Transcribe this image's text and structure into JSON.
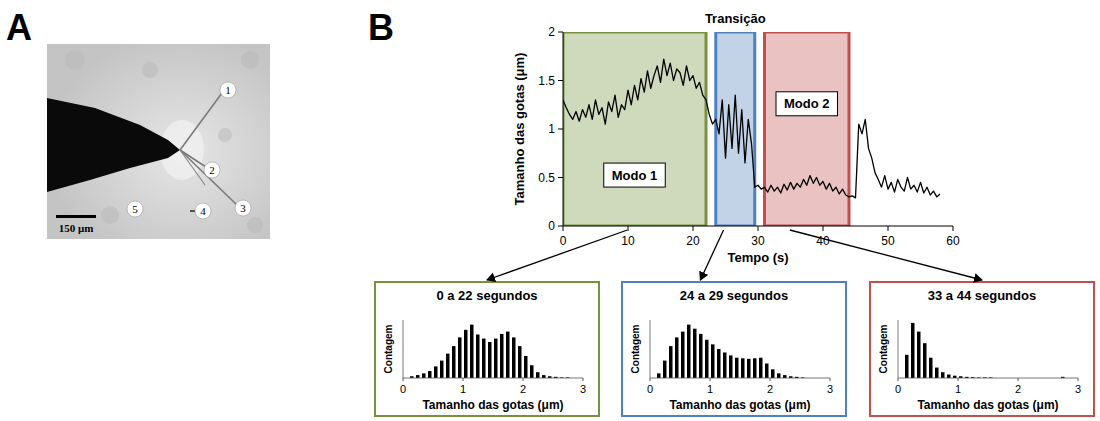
{
  "figure": {
    "panels": [
      "A",
      "B"
    ],
    "micrograph": {
      "markers": [
        "1",
        "2",
        "3",
        "4",
        "5"
      ],
      "scale_bar": "150 μm"
    }
  },
  "chart_data": [
    {
      "type": "line",
      "xlabel": "Tempo (s)",
      "ylabel": "Tamanho das gotas (μm)",
      "xlim": [
        0,
        60
      ],
      "xticks": [
        0,
        10,
        20,
        30,
        40,
        50,
        60
      ],
      "ylim": [
        0,
        2
      ],
      "yticks": [
        0,
        0.5,
        1,
        1.5,
        2
      ],
      "grid": false,
      "color": "#000000",
      "regions": [
        {
          "label": "Modo 1",
          "x": [
            0,
            22
          ],
          "color": "#76923c"
        },
        {
          "label": "Transição",
          "x": [
            23.5,
            29.5
          ],
          "color": "#4f81bd"
        },
        {
          "label": "Modo 2",
          "x": [
            31,
            44
          ],
          "color": "#c0504d"
        }
      ],
      "x": [
        0,
        0.5,
        1,
        1.5,
        2,
        2.5,
        3,
        3.5,
        4,
        4.5,
        5,
        5.5,
        6,
        6.5,
        7,
        7.5,
        8,
        8.5,
        9,
        9.5,
        10,
        10.5,
        11,
        11.5,
        12,
        12.5,
        13,
        13.5,
        14,
        14.5,
        15,
        15.5,
        16,
        16.5,
        17,
        17.5,
        18,
        18.5,
        19,
        19.5,
        20,
        20.5,
        21,
        21.5,
        22,
        22.5,
        23,
        23.5,
        24,
        24.5,
        25,
        25.5,
        26,
        26.5,
        27,
        27.5,
        28,
        28.5,
        29,
        29.5,
        30,
        30.5,
        31,
        31.5,
        32,
        32.5,
        33,
        33.5,
        34,
        34.5,
        35,
        35.5,
        36,
        36.5,
        37,
        37.5,
        38,
        38.5,
        39,
        39.5,
        40,
        40.5,
        41,
        41.5,
        42,
        42.5,
        43,
        43.5,
        44,
        44.5,
        45,
        45.5,
        46,
        46.5,
        47,
        47.5,
        48,
        48.5,
        49,
        49.5,
        50,
        50.5,
        51,
        51.5,
        52,
        52.5,
        53,
        53.5,
        54,
        54.5,
        55,
        55.5,
        56,
        56.5,
        57,
        57.5,
        58
      ],
      "values": [
        1.3,
        1.22,
        1.15,
        1.1,
        1.18,
        1.08,
        1.2,
        1.12,
        1.25,
        1.1,
        1.3,
        1.15,
        1.22,
        1.05,
        1.28,
        1.18,
        1.35,
        1.12,
        1.25,
        1.2,
        1.4,
        1.25,
        1.45,
        1.3,
        1.52,
        1.38,
        1.6,
        1.42,
        1.55,
        1.65,
        1.48,
        1.72,
        1.55,
        1.68,
        1.5,
        1.62,
        1.58,
        1.45,
        1.65,
        1.5,
        1.55,
        1.42,
        1.48,
        1.35,
        1.3,
        1.15,
        1.05,
        1.1,
        0.95,
        1.3,
        0.7,
        1.25,
        0.8,
        1.35,
        0.75,
        1.2,
        0.65,
        1.1,
        0.85,
        0.4,
        0.42,
        0.38,
        0.4,
        0.35,
        0.42,
        0.36,
        0.4,
        0.34,
        0.43,
        0.37,
        0.45,
        0.38,
        0.44,
        0.4,
        0.48,
        0.42,
        0.52,
        0.44,
        0.5,
        0.42,
        0.46,
        0.38,
        0.44,
        0.36,
        0.4,
        0.33,
        0.38,
        0.32,
        0.3,
        0.31,
        0.29,
        1.05,
        0.95,
        1.1,
        0.8,
        0.7,
        0.55,
        0.48,
        0.4,
        0.52,
        0.38,
        0.45,
        0.35,
        0.48,
        0.4,
        0.36,
        0.5,
        0.38,
        0.42,
        0.35,
        0.45,
        0.34,
        0.4,
        0.32,
        0.36,
        0.3,
        0.33
      ]
    },
    {
      "type": "histogram",
      "title": "0 a 22 segundos",
      "xlabel": "Tamanho das gotas (μm)",
      "ylabel": "Contagem",
      "xlim": [
        0,
        3
      ],
      "xticks": [
        0,
        1,
        2,
        3
      ],
      "ylim": [
        0,
        10
      ],
      "tick_labels": "x",
      "color": "#000000",
      "bins": [
        0,
        0.1,
        0.2,
        0.3,
        0.4,
        0.5,
        0.6,
        0.7,
        0.8,
        0.9,
        1.0,
        1.1,
        1.2,
        1.3,
        1.4,
        1.5,
        1.6,
        1.7,
        1.8,
        1.9,
        2.0,
        2.1,
        2.2,
        2.3,
        2.4,
        2.5,
        2.6,
        2.7,
        2.8,
        2.9,
        3.0
      ],
      "counts": [
        0,
        0.3,
        0.5,
        0.8,
        1.2,
        2,
        3,
        4.2,
        5.5,
        7,
        8.3,
        9.2,
        7.5,
        6.8,
        6.2,
        6.8,
        7.6,
        8,
        7,
        5.5,
        3.8,
        2.2,
        1,
        0.5,
        0.3,
        0.2,
        0.1,
        0.1,
        0,
        0
      ]
    },
    {
      "type": "histogram",
      "title": "24 a 29 segundos",
      "xlabel": "Tamanho das gotas (μm)",
      "ylabel": "Contagem",
      "xlim": [
        0,
        3
      ],
      "xticks": [
        0,
        1,
        2,
        3
      ],
      "ylim": [
        0,
        10
      ],
      "tick_labels": "x",
      "color": "#000000",
      "bins": [
        0,
        0.1,
        0.2,
        0.3,
        0.4,
        0.5,
        0.6,
        0.7,
        0.8,
        0.9,
        1.0,
        1.1,
        1.2,
        1.3,
        1.4,
        1.5,
        1.6,
        1.7,
        1.8,
        1.9,
        2.0,
        2.1,
        2.2,
        2.3,
        2.4,
        2.5,
        2.6,
        2.7,
        2.8,
        2.9,
        3.0
      ],
      "counts": [
        0,
        0.8,
        3,
        5.5,
        7,
        8,
        9.2,
        8.5,
        7.6,
        6.6,
        5.8,
        5,
        4.4,
        3.9,
        3.5,
        3.4,
        3.3,
        3.4,
        3.5,
        2.5,
        1.5,
        0.8,
        0.5,
        0.3,
        0.2,
        0.1,
        0,
        0,
        0,
        0
      ]
    },
    {
      "type": "histogram",
      "title": "33 a 44 segundos",
      "xlabel": "Tamanho das gotas (μm)",
      "ylabel": "Contagem",
      "xlim": [
        0,
        3
      ],
      "xticks": [
        0,
        1,
        2,
        3
      ],
      "ylim": [
        0,
        10
      ],
      "tick_labels": "x",
      "color": "#000000",
      "bins": [
        0,
        0.1,
        0.2,
        0.3,
        0.4,
        0.5,
        0.6,
        0.7,
        0.8,
        0.9,
        1.0,
        1.1,
        1.2,
        1.3,
        1.4,
        1.5,
        1.6,
        1.7,
        1.8,
        1.9,
        2.0,
        2.1,
        2.2,
        2.3,
        2.4,
        2.5,
        2.6,
        2.7,
        2.8,
        2.9,
        3.0
      ],
      "counts": [
        0,
        4,
        9.5,
        8,
        6,
        3.5,
        1.8,
        1,
        0.6,
        0.4,
        0.3,
        0.2,
        0.15,
        0.1,
        0.1,
        0.1,
        0,
        0,
        0,
        0,
        0,
        0,
        0,
        0,
        0,
        0,
        0,
        0.2,
        0,
        0
      ]
    }
  ]
}
